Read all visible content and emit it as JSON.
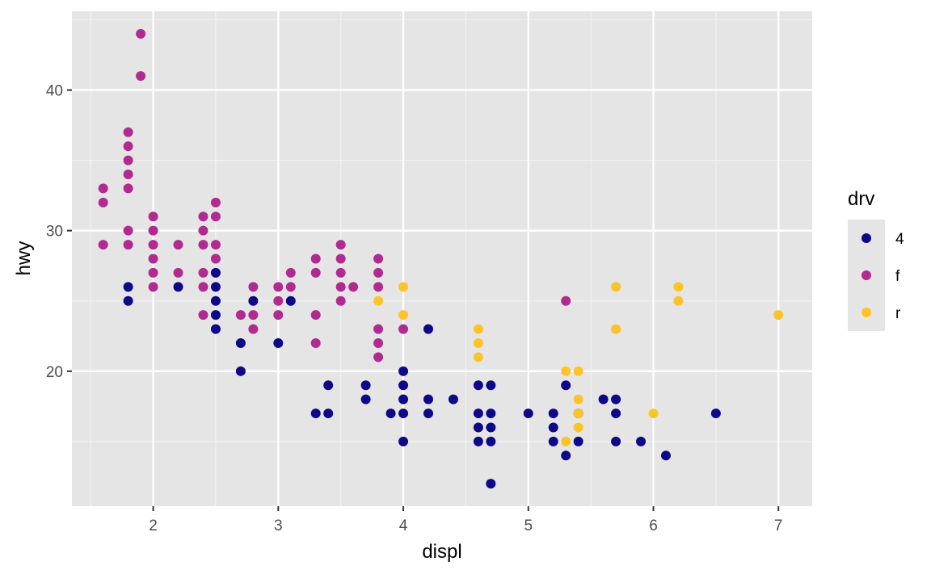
{
  "chart_data": {
    "type": "scatter",
    "xlabel": "displ",
    "ylabel": "hwy",
    "xlim": [
      1.35,
      7.27
    ],
    "ylim": [
      10.4,
      45.6
    ],
    "x_ticks": [
      2,
      3,
      4,
      5,
      6,
      7
    ],
    "y_ticks": [
      20,
      30,
      40
    ],
    "grid": true,
    "background": "#e5e5e5",
    "legend": {
      "title": "drv",
      "position": "right",
      "entries": [
        {
          "label": "4",
          "color": "#0d0887"
        },
        {
          "label": "f",
          "color": "#b12a90"
        },
        {
          "label": "r",
          "color": "#fcc32a"
        }
      ]
    },
    "series": [
      {
        "name": "4",
        "color": "#0d0887",
        "points": [
          [
            1.8,
            26
          ],
          [
            1.8,
            25
          ],
          [
            2.2,
            26
          ],
          [
            2.5,
            27
          ],
          [
            2.5,
            26
          ],
          [
            2.5,
            25
          ],
          [
            2.5,
            24
          ],
          [
            2.5,
            23
          ],
          [
            2.7,
            22
          ],
          [
            2.7,
            20
          ],
          [
            2.8,
            25
          ],
          [
            3.0,
            22
          ],
          [
            3.1,
            25
          ],
          [
            3.3,
            17
          ],
          [
            3.4,
            19
          ],
          [
            3.4,
            17
          ],
          [
            3.7,
            19
          ],
          [
            3.7,
            18
          ],
          [
            3.9,
            17
          ],
          [
            4.0,
            20
          ],
          [
            4.0,
            19
          ],
          [
            4.0,
            18
          ],
          [
            4.0,
            17
          ],
          [
            4.0,
            15
          ],
          [
            4.2,
            23
          ],
          [
            4.2,
            18
          ],
          [
            4.2,
            17
          ],
          [
            4.4,
            18
          ],
          [
            4.6,
            19
          ],
          [
            4.6,
            17
          ],
          [
            4.6,
            16
          ],
          [
            4.6,
            15
          ],
          [
            4.7,
            19
          ],
          [
            4.7,
            17
          ],
          [
            4.7,
            16
          ],
          [
            4.7,
            15
          ],
          [
            4.7,
            12
          ],
          [
            5.0,
            17
          ],
          [
            5.2,
            17
          ],
          [
            5.2,
            16
          ],
          [
            5.2,
            15
          ],
          [
            5.3,
            19
          ],
          [
            5.3,
            14
          ],
          [
            5.4,
            17
          ],
          [
            5.4,
            15
          ],
          [
            5.6,
            18
          ],
          [
            5.7,
            18
          ],
          [
            5.7,
            17
          ],
          [
            5.7,
            15
          ],
          [
            5.9,
            15
          ],
          [
            6.1,
            14
          ],
          [
            6.5,
            17
          ]
        ]
      },
      {
        "name": "f",
        "color": "#b12a90",
        "points": [
          [
            1.6,
            33
          ],
          [
            1.6,
            32
          ],
          [
            1.6,
            29
          ],
          [
            1.8,
            37
          ],
          [
            1.8,
            36
          ],
          [
            1.8,
            35
          ],
          [
            1.8,
            34
          ],
          [
            1.8,
            33
          ],
          [
            1.8,
            30
          ],
          [
            1.8,
            29
          ],
          [
            1.9,
            44
          ],
          [
            1.9,
            41
          ],
          [
            2.0,
            31
          ],
          [
            2.0,
            30
          ],
          [
            2.0,
            29
          ],
          [
            2.0,
            28
          ],
          [
            2.0,
            27
          ],
          [
            2.0,
            26
          ],
          [
            2.2,
            29
          ],
          [
            2.2,
            27
          ],
          [
            2.4,
            31
          ],
          [
            2.4,
            30
          ],
          [
            2.4,
            29
          ],
          [
            2.4,
            27
          ],
          [
            2.4,
            26
          ],
          [
            2.4,
            24
          ],
          [
            2.5,
            32
          ],
          [
            2.5,
            31
          ],
          [
            2.5,
            29
          ],
          [
            2.5,
            28
          ],
          [
            2.7,
            24
          ],
          [
            2.8,
            26
          ],
          [
            2.8,
            24
          ],
          [
            2.8,
            23
          ],
          [
            3.0,
            26
          ],
          [
            3.0,
            25
          ],
          [
            3.0,
            24
          ],
          [
            3.1,
            27
          ],
          [
            3.1,
            26
          ],
          [
            3.3,
            28
          ],
          [
            3.3,
            27
          ],
          [
            3.3,
            24
          ],
          [
            3.3,
            22
          ],
          [
            3.5,
            29
          ],
          [
            3.5,
            28
          ],
          [
            3.5,
            27
          ],
          [
            3.5,
            26
          ],
          [
            3.5,
            25
          ],
          [
            3.6,
            26
          ],
          [
            3.8,
            28
          ],
          [
            3.8,
            27
          ],
          [
            3.8,
            26
          ],
          [
            3.8,
            23
          ],
          [
            3.8,
            22
          ],
          [
            3.8,
            21
          ],
          [
            4.0,
            23
          ],
          [
            5.3,
            25
          ]
        ]
      },
      {
        "name": "r",
        "color": "#fcc32a",
        "points": [
          [
            3.8,
            25
          ],
          [
            4.0,
            26
          ],
          [
            4.0,
            24
          ],
          [
            4.6,
            23
          ],
          [
            4.6,
            22
          ],
          [
            4.6,
            21
          ],
          [
            5.3,
            20
          ],
          [
            5.3,
            15
          ],
          [
            5.4,
            20
          ],
          [
            5.4,
            18
          ],
          [
            5.4,
            17
          ],
          [
            5.4,
            16
          ],
          [
            5.7,
            26
          ],
          [
            5.7,
            23
          ],
          [
            6.0,
            17
          ],
          [
            6.2,
            26
          ],
          [
            6.2,
            25
          ],
          [
            7.0,
            24
          ]
        ]
      }
    ]
  }
}
